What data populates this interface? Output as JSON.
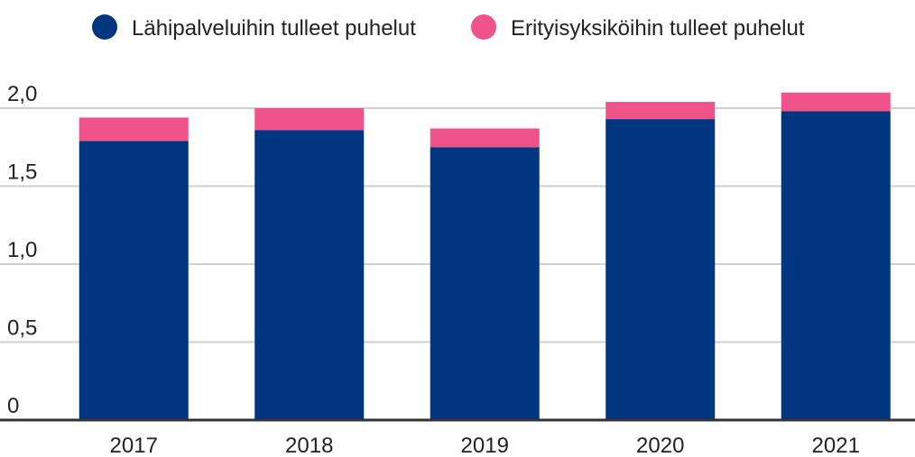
{
  "chart_data": {
    "type": "stacked_bar",
    "categories": [
      "2017",
      "2018",
      "2019",
      "2020",
      "2021"
    ],
    "series": [
      {
        "name": "Lähipalveluihin tulleet puhelut",
        "color": "#003580",
        "values": [
          1.79,
          1.86,
          1.75,
          1.93,
          1.98
        ]
      },
      {
        "name": "Erityisyksiköihin tulleet puhelut",
        "color": "#f0528a",
        "values": [
          0.15,
          0.14,
          0.12,
          0.11,
          0.12
        ]
      }
    ],
    "ylim": [
      0,
      2.1
    ],
    "yticks": [
      0,
      {
        "value": 0.5,
        "label": "0,5"
      },
      {
        "value": 1.0,
        "label": "1,0"
      },
      {
        "value": 1.5,
        "label": "1,5"
      },
      {
        "value": 2.0,
        "label": "2,0"
      }
    ],
    "grid": true,
    "legend": "top"
  }
}
